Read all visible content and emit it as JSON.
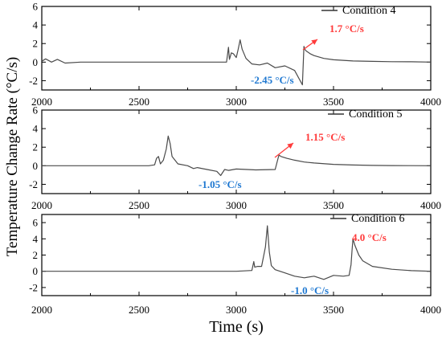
{
  "colors": {
    "line": "#4a4a4a",
    "axis": "#000000",
    "red_annotation": "#ff3b3b",
    "blue_annotation": "#1f78d1",
    "legend_line": "#333333"
  },
  "chart_data": {
    "type": "line",
    "ylabel": "Temperature Change Rate (°C/s)",
    "xlabel": "Time (s)",
    "grid": false,
    "legend_position": "top-right",
    "panels": [
      {
        "legend": "Condition 4",
        "xlim": [
          2000,
          4000
        ],
        "ylim": [
          -3,
          6
        ],
        "x_ticks": [
          "2000",
          "2500",
          "3000",
          "3500",
          "4000"
        ],
        "y_ticks": [
          "6",
          "4",
          "2",
          "0",
          "-2"
        ],
        "annotations": {
          "red": "1.7 °C/s",
          "blue": "-2.45 °C/s"
        },
        "series": [
          {
            "x": [
              2000,
              2020,
              2050,
              2080,
              2120,
              2200,
              2400,
              2600,
              2800,
              2950,
              2960,
              2965,
              2975,
              2985,
              3000,
              3010,
              3020,
              3030,
              3050,
              3080,
              3120,
              3160,
              3200,
              3250,
              3300,
              3340,
              3348,
              3352,
              3360,
              3380,
              3400,
              3450,
              3500,
              3600,
              3700,
              3800,
              3900,
              4000
            ],
            "y": [
              0.1,
              0.35,
              0.0,
              0.3,
              -0.1,
              0.0,
              0.0,
              0.0,
              0.0,
              0.0,
              1.6,
              0.3,
              1.0,
              0.9,
              0.5,
              1.4,
              2.4,
              1.4,
              0.4,
              -0.2,
              -0.3,
              -0.1,
              -0.6,
              -0.4,
              -0.9,
              -2.45,
              1.7,
              1.4,
              1.2,
              0.9,
              0.7,
              0.4,
              0.25,
              0.12,
              0.08,
              0.05,
              0.04,
              0.0
            ]
          }
        ]
      },
      {
        "legend": "Condition 5",
        "xlim": [
          2000,
          4000
        ],
        "ylim": [
          -3,
          6
        ],
        "x_ticks": [
          "2000",
          "2500",
          "3000",
          "3500",
          "4000"
        ],
        "y_ticks": [
          "6",
          "4",
          "2",
          "0",
          "-2"
        ],
        "annotations": {
          "red": "1.15 °C/s",
          "blue": "-1.05 °C/s"
        },
        "series": [
          {
            "x": [
              2000,
              2200,
              2400,
              2550,
              2580,
              2590,
              2600,
              2610,
              2625,
              2640,
              2650,
              2660,
              2670,
              2700,
              2750,
              2780,
              2800,
              2850,
              2900,
              2920,
              2940,
              2960,
              3000,
              3100,
              3200,
              3215,
              3220,
              3230,
              3260,
              3300,
              3350,
              3400,
              3500,
              3600,
              3700,
              3800,
              3900,
              4000
            ],
            "y": [
              0.0,
              0.0,
              0.0,
              0.0,
              0.1,
              0.8,
              1.0,
              0.2,
              0.6,
              1.8,
              3.2,
              2.4,
              1.0,
              0.2,
              0.0,
              -0.3,
              -0.2,
              -0.4,
              -0.6,
              -1.05,
              -0.4,
              -0.5,
              -0.35,
              -0.45,
              -0.4,
              0.8,
              1.15,
              1.0,
              0.8,
              0.6,
              0.4,
              0.3,
              0.15,
              0.08,
              0.04,
              0.02,
              0.01,
              0.0
            ]
          }
        ]
      },
      {
        "legend": "Condition 6",
        "xlim": [
          2000,
          4000
        ],
        "ylim": [
          -3,
          7
        ],
        "x_ticks": [
          "2000",
          "2500",
          "3000",
          "3500",
          "4000"
        ],
        "y_ticks": [
          "6",
          "4",
          "2",
          "0",
          "-2"
        ],
        "annotations": {
          "red": "4.0 °C/s",
          "blue": "-1.0 °C/s"
        },
        "series": [
          {
            "x": [
              2000,
              2200,
              2400,
              2600,
              2800,
              3000,
              3080,
              3090,
              3095,
              3110,
              3130,
              3150,
              3160,
              3170,
              3180,
              3200,
              3250,
              3300,
              3350,
              3400,
              3450,
              3500,
              3550,
              3580,
              3590,
              3595,
              3600,
              3610,
              3630,
              3650,
              3700,
              3800,
              3900,
              4000
            ],
            "y": [
              0.0,
              0.0,
              0.0,
              0.0,
              0.0,
              0.0,
              0.1,
              1.2,
              0.5,
              0.6,
              0.6,
              3.0,
              5.6,
              2.4,
              0.7,
              0.2,
              -0.2,
              -0.6,
              -0.8,
              -0.6,
              -1.0,
              -0.5,
              -0.6,
              -0.5,
              0.8,
              2.5,
              4.0,
              3.2,
              2.0,
              1.3,
              0.6,
              0.25,
              0.08,
              0.0
            ]
          }
        ]
      }
    ]
  }
}
